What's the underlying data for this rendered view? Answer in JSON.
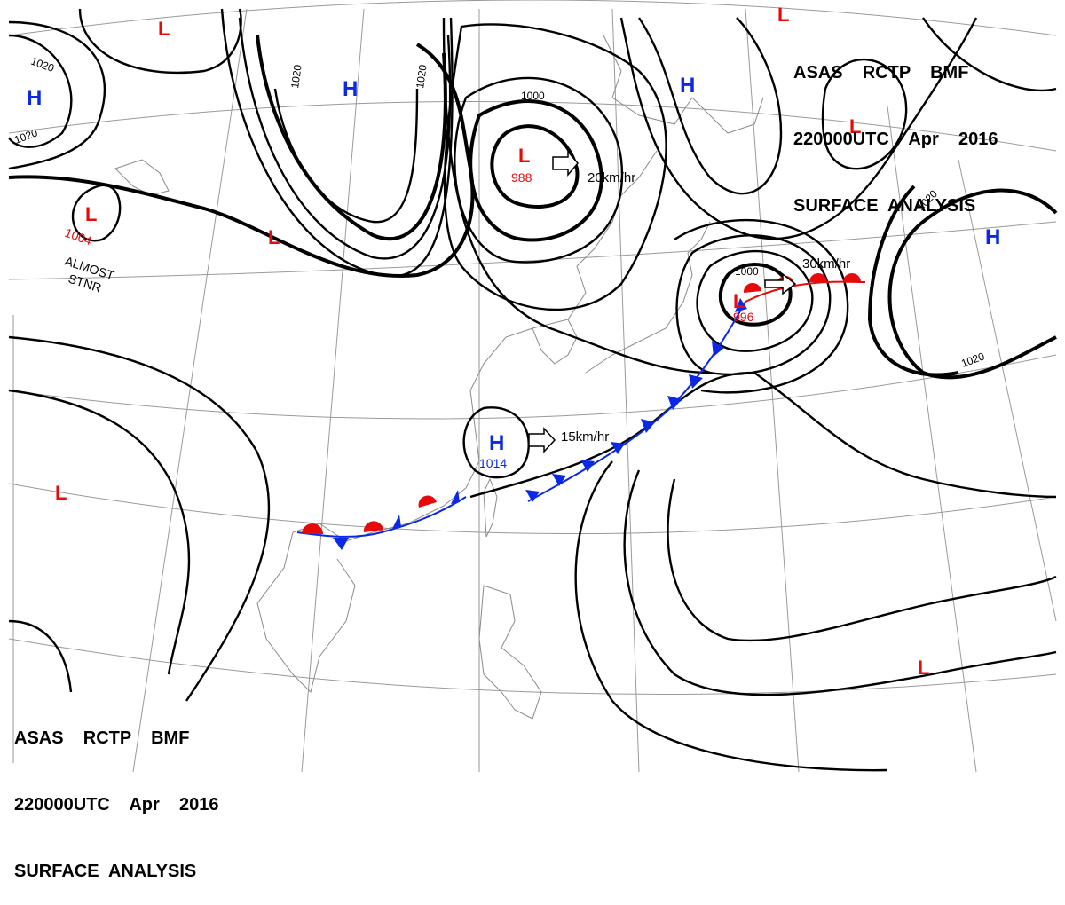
{
  "header": {
    "line1": "ASAS    RCTP    BMF",
    "line2": "220000UTC    Apr    2016",
    "line3": "SURFACE  ANALYSIS"
  },
  "pressure_centers": [
    {
      "type": "H",
      "value": ""
    },
    {
      "type": "H",
      "value": ""
    },
    {
      "type": "H",
      "value": ""
    },
    {
      "type": "H",
      "value": ""
    },
    {
      "type": "H",
      "value": "1014"
    },
    {
      "type": "L",
      "value": ""
    },
    {
      "type": "L",
      "value": "988"
    },
    {
      "type": "L",
      "value": "1004"
    },
    {
      "type": "L",
      "value": ""
    },
    {
      "type": "L",
      "value": "996"
    },
    {
      "type": "L",
      "value": ""
    },
    {
      "type": "L",
      "value": ""
    },
    {
      "type": "L",
      "value": ""
    },
    {
      "type": "L",
      "value": ""
    }
  ],
  "isobar_labels": [
    "1020",
    "1020",
    "1020",
    "1020",
    "1000",
    "1000",
    "1020",
    "1020"
  ],
  "motion": {
    "low_north": "20km/hr",
    "low_east": "30km/hr",
    "high_south": "15km/hr"
  },
  "note": {
    "line1": "ALMOST",
    "line2": "STNR"
  },
  "colors": {
    "high": "#0a28e6",
    "low": "#e60a0a",
    "cold_front": "#0a28e6",
    "warm_front": "#e60a0a",
    "isobar": "#000000",
    "grid": "#9a9a9a",
    "coastline": "#8a8a8a"
  }
}
